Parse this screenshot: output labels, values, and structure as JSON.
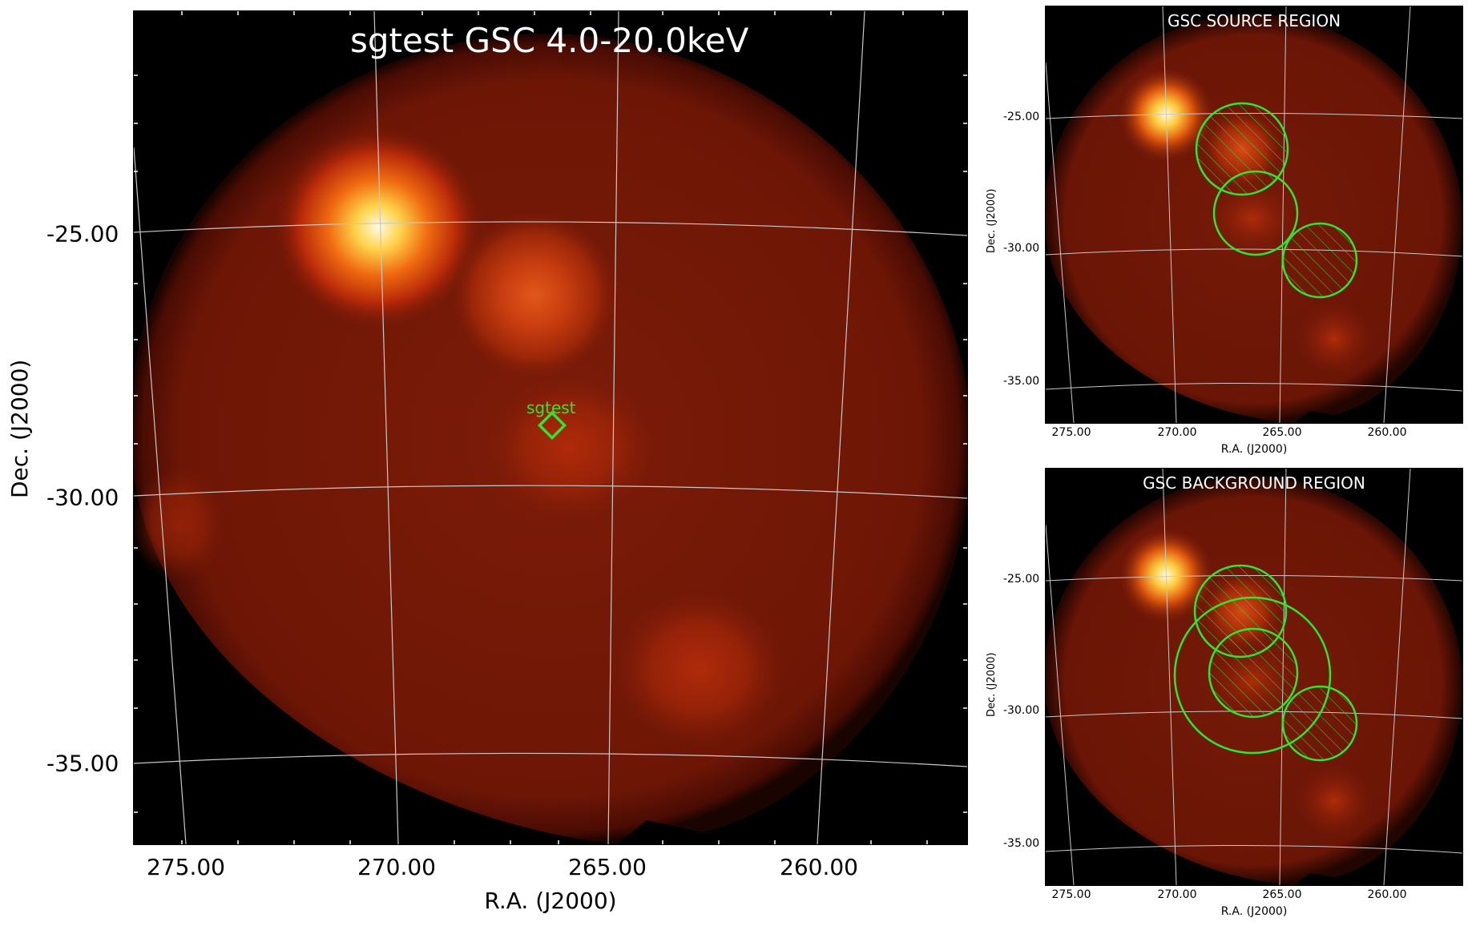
{
  "main": {
    "title": "sgtest GSC 4.0-20.0keV",
    "source_label": "sgtest",
    "ra_ticks": [
      "275.00",
      "270.00",
      "265.00",
      "260.00"
    ],
    "dec_ticks": [
      "-25.00",
      "-30.00",
      "-35.00"
    ],
    "xlabel": "R.A. (J2000)",
    "ylabel": "Dec. (J2000)"
  },
  "source_panel": {
    "title": "GSC SOURCE REGION",
    "ra_ticks": [
      "275.00",
      "270.00",
      "265.00",
      "260.00"
    ],
    "dec_ticks": [
      "-25.00",
      "-30.00",
      "-35.00"
    ],
    "xlabel": "R.A. (J2000)",
    "ylabel": "Dec. (J2000)"
  },
  "background_panel": {
    "title": "GSC BACKGROUND REGION",
    "ra_ticks": [
      "275.00",
      "270.00",
      "265.00",
      "260.00"
    ],
    "dec_ticks": [
      "-25.00",
      "-30.00",
      "-35.00"
    ],
    "xlabel": "R.A. (J2000)",
    "ylabel": "Dec. (J2000)"
  },
  "colors": {
    "background": "#000000",
    "field": "#7a1a08",
    "region": "#2ee62e",
    "grid": "#c8c8c8"
  }
}
